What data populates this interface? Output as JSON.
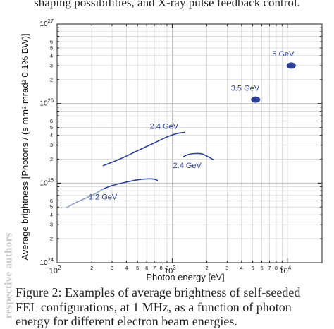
{
  "page": {
    "top_text": "shaping possibilities, and X-ray pulse feedback control.",
    "watermark": "respective authors",
    "caption_line1": "Figure 2: Examples of average brightness of self-seeded",
    "caption_line2": "FEL configurations, at 1 MHz, as a function of photon",
    "caption_line3": "energy for different electron beam energies."
  },
  "chart_data": {
    "type": "line",
    "xlabel": "Photon energy [eV]",
    "ylabel": "Average brightness [Photons / (s mm² mrad² 0.1% BW)]",
    "xscale": "log",
    "yscale": "log",
    "xlim": [
      100,
      20000
    ],
    "ylim": [
      1e+24,
      1e+27
    ],
    "grid": true,
    "x_ticks": [
      {
        "v": 100,
        "base": "10",
        "exp": "2"
      },
      {
        "v": 1000,
        "base": "10",
        "exp": "3"
      },
      {
        "v": 10000,
        "base": "10",
        "exp": "4"
      }
    ],
    "x_minor_labels": [
      "2",
      "3",
      "4",
      "5",
      "6",
      "7",
      "8",
      "9"
    ],
    "y_ticks": [
      {
        "v": 1e+24,
        "base": "10",
        "exp": "24"
      },
      {
        "v": 1e+25,
        "base": "10",
        "exp": "25"
      },
      {
        "v": 1e+26,
        "base": "10",
        "exp": "26"
      },
      {
        "v": 1e+27,
        "base": "10",
        "exp": "27"
      }
    ],
    "y_minor_labels": [
      "2",
      "3",
      "4",
      "5",
      "6"
    ],
    "series": [
      {
        "name": "1.2 GeV",
        "color": "#2b3f97",
        "faint_color": "#8fa0c8",
        "faint_until": 250,
        "points": [
          [
            120,
            4.9e+24
          ],
          [
            150,
            5.8e+24
          ],
          [
            200,
            7e+24
          ],
          [
            250,
            8.4e+24
          ],
          [
            300,
            9.3e+24
          ],
          [
            400,
            1.03e+25
          ],
          [
            500,
            1.1e+25
          ],
          [
            600,
            1.13e+25
          ],
          [
            700,
            1.12e+25
          ],
          [
            750,
            1.07e+25
          ]
        ],
        "label_at": [
          250,
          6.2e+24
        ]
      },
      {
        "name": "2.4 GeV",
        "color": "#2b3f97",
        "points": [
          [
            250,
            1.65e+25
          ],
          [
            350,
            2e+25
          ],
          [
            500,
            2.55e+25
          ],
          [
            700,
            3.2e+25
          ],
          [
            900,
            3.8e+25
          ],
          [
            1100,
            4.2e+25
          ],
          [
            1300,
            4.35e+25
          ]
        ],
        "label_at": [
          850,
          4.8e+25
        ]
      },
      {
        "name": "2.4 GeV",
        "color": "#2b3f97",
        "points": [
          [
            1250,
            2.15e+25
          ],
          [
            1400,
            2.3e+25
          ],
          [
            1600,
            2.35e+25
          ],
          [
            1800,
            2.33e+25
          ],
          [
            2000,
            2.18e+25
          ],
          [
            2300,
            1.95e+25
          ]
        ],
        "label_at": [
          1350,
          1.55e+25
        ]
      }
    ],
    "points": [
      {
        "name": "3.5 GeV",
        "x": 5300,
        "y": 1.12e+26,
        "label_at": [
          4300,
          1.45e+26
        ]
      },
      {
        "name": "5 GeV",
        "x": 10800,
        "y": 3e+26,
        "label_at": [
          9200,
          3.9e+26
        ]
      }
    ]
  }
}
